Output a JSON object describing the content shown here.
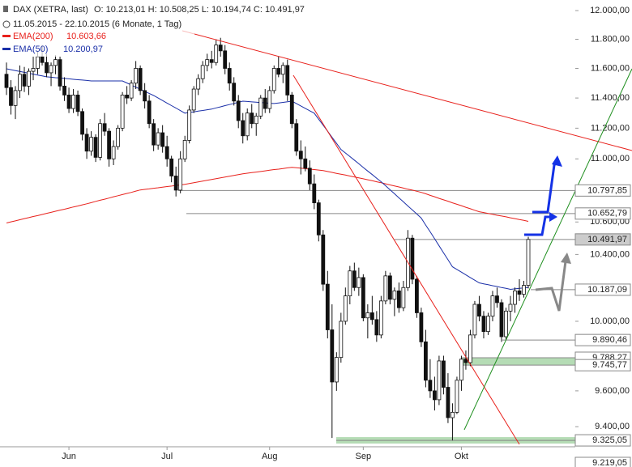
{
  "chart_data": {
    "type": "candlestick",
    "title": "DAX (XETRA, last)",
    "quote": "O: 10.213,01  H: 10.508,25  L: 10.194,74  C: 10.491,97",
    "period": "11.05.2015 - 22.10.2015 (6 Monate, 1 Tag)",
    "log_scale": true,
    "ylim": [
      9290,
      12075
    ],
    "yticks": [
      {
        "value": 12000,
        "label": "12.000,00"
      },
      {
        "value": 11800,
        "label": "11.800,00"
      },
      {
        "value": 11600,
        "label": "11.600,00"
      },
      {
        "value": 11400,
        "label": "11.400,00"
      },
      {
        "value": 11200,
        "label": "11.200,00"
      },
      {
        "value": 11000,
        "label": "11.000,00"
      },
      {
        "value": 10600,
        "label": "10.600,00"
      },
      {
        "value": 10400,
        "label": "10.400,00"
      },
      {
        "value": 10000,
        "label": "10.000,00"
      },
      {
        "value": 9600,
        "label": "9.600,00"
      },
      {
        "value": 9400,
        "label": "9.400,00"
      }
    ],
    "categories": [
      null,
      null,
      null,
      null,
      null,
      null,
      null,
      null,
      null,
      null,
      null,
      null,
      null,
      null,
      "Jun",
      null,
      null,
      null,
      null,
      null,
      null,
      null,
      null,
      null,
      null,
      null,
      null,
      null,
      null,
      null,
      null,
      null,
      null,
      null,
      null,
      null,
      "Jul",
      null,
      null,
      null,
      null,
      null,
      null,
      null,
      null,
      null,
      null,
      null,
      null,
      null,
      null,
      null,
      null,
      null,
      null,
      null,
      null,
      null,
      null,
      "Aug",
      null,
      null,
      null,
      null,
      null,
      null,
      null,
      null,
      null,
      null,
      null,
      null,
      null,
      null,
      null,
      null,
      null,
      null,
      null,
      null,
      "Sep",
      null,
      null,
      null,
      null,
      null,
      null,
      null,
      null,
      null,
      null,
      null,
      null,
      null,
      null,
      null,
      null,
      null,
      null,
      null,
      null,
      null,
      "Okt",
      null,
      null,
      null,
      null,
      null,
      null,
      null,
      null,
      null,
      null,
      null,
      null,
      null,
      null,
      null
    ],
    "candles": [
      [
        11560,
        11640,
        11420,
        11470
      ],
      [
        11470,
        11520,
        11290,
        11350
      ],
      [
        11350,
        11480,
        11260,
        11450
      ],
      [
        11450,
        11620,
        11400,
        11560
      ],
      [
        11560,
        11610,
        11440,
        11480
      ],
      [
        11480,
        11600,
        11420,
        11580
      ],
      [
        11580,
        11680,
        11520,
        11600
      ],
      [
        11600,
        11720,
        11560,
        11680
      ],
      [
        11680,
        11760,
        11620,
        11640
      ],
      [
        11640,
        11700,
        11540,
        11570
      ],
      [
        11570,
        11640,
        11480,
        11620
      ],
      [
        11620,
        11690,
        11560,
        11660
      ],
      [
        11660,
        11680,
        11450,
        11480
      ],
      [
        11480,
        11540,
        11380,
        11420
      ],
      [
        11420,
        11470,
        11300,
        11330
      ],
      [
        11330,
        11460,
        11300,
        11420
      ],
      [
        11420,
        11450,
        11280,
        11310
      ],
      [
        11310,
        11330,
        11120,
        11160
      ],
      [
        11160,
        11200,
        11000,
        11050
      ],
      [
        11050,
        11180,
        11020,
        11140
      ],
      [
        11140,
        11160,
        10980,
        11010
      ],
      [
        11010,
        11260,
        10990,
        11230
      ],
      [
        11230,
        11300,
        11150,
        11180
      ],
      [
        11180,
        11200,
        10950,
        11000
      ],
      [
        11000,
        11120,
        10960,
        11080
      ],
      [
        11080,
        11220,
        11060,
        11200
      ],
      [
        11200,
        11440,
        11180,
        11420
      ],
      [
        11420,
        11480,
        11360,
        11400
      ],
      [
        11400,
        11520,
        11380,
        11500
      ],
      [
        11500,
        11650,
        11460,
        11600
      ],
      [
        11600,
        11620,
        11420,
        11450
      ],
      [
        11450,
        11500,
        11330,
        11380
      ],
      [
        11380,
        11420,
        11200,
        11230
      ],
      [
        11230,
        11260,
        11050,
        11090
      ],
      [
        11090,
        11200,
        11060,
        11170
      ],
      [
        11170,
        11220,
        11040,
        11080
      ],
      [
        11080,
        11150,
        10950,
        11000
      ],
      [
        11000,
        11020,
        10850,
        10890
      ],
      [
        10890,
        10950,
        10760,
        10800
      ],
      [
        10800,
        11050,
        10780,
        11000
      ],
      [
        11000,
        11150,
        10980,
        11120
      ],
      [
        11120,
        11350,
        11100,
        11320
      ],
      [
        11320,
        11480,
        11300,
        11460
      ],
      [
        11460,
        11560,
        11420,
        11530
      ],
      [
        11530,
        11650,
        11500,
        11620
      ],
      [
        11620,
        11700,
        11580,
        11660
      ],
      [
        11660,
        11720,
        11600,
        11640
      ],
      [
        11640,
        11800,
        11620,
        11760
      ],
      [
        11760,
        11810,
        11680,
        11720
      ],
      [
        11720,
        11760,
        11560,
        11600
      ],
      [
        11600,
        11640,
        11450,
        11500
      ],
      [
        11500,
        11540,
        11350,
        11380
      ],
      [
        11380,
        11420,
        11200,
        11250
      ],
      [
        11250,
        11300,
        11100,
        11150
      ],
      [
        11150,
        11330,
        11120,
        11300
      ],
      [
        11300,
        11360,
        11200,
        11230
      ],
      [
        11230,
        11300,
        11150,
        11280
      ],
      [
        11280,
        11420,
        11260,
        11400
      ],
      [
        11400,
        11460,
        11300,
        11330
      ],
      [
        11330,
        11480,
        11300,
        11450
      ],
      [
        11450,
        11620,
        11430,
        11600
      ],
      [
        11600,
        11680,
        11540,
        11560
      ],
      [
        11560,
        11640,
        11500,
        11620
      ],
      [
        11620,
        11660,
        11380,
        11420
      ],
      [
        11420,
        11440,
        11200,
        11230
      ],
      [
        11230,
        11260,
        11020,
        11050
      ],
      [
        11050,
        11120,
        10900,
        11000
      ],
      [
        11000,
        11080,
        10920,
        10940
      ],
      [
        10940,
        10990,
        10800,
        10840
      ],
      [
        10840,
        10900,
        10680,
        10720
      ],
      [
        10720,
        10740,
        10480,
        10520
      ],
      [
        10520,
        10550,
        10180,
        10220
      ],
      [
        10220,
        10300,
        9900,
        9950
      ],
      [
        9950,
        10100,
        9338,
        9650
      ],
      [
        9650,
        9820,
        9600,
        9790
      ],
      [
        9790,
        10050,
        9760,
        10000
      ],
      [
        10000,
        10200,
        9980,
        10150
      ],
      [
        10150,
        10330,
        10100,
        10300
      ],
      [
        10300,
        10350,
        10180,
        10200
      ],
      [
        10200,
        10320,
        10150,
        10260
      ],
      [
        10260,
        10280,
        10000,
        10020
      ],
      [
        10020,
        10100,
        9900,
        10050
      ],
      [
        10050,
        10150,
        9980,
        10010
      ],
      [
        10010,
        10060,
        9880,
        9920
      ],
      [
        9920,
        10150,
        9900,
        10120
      ],
      [
        10120,
        10300,
        10100,
        10270
      ],
      [
        10270,
        10290,
        10100,
        10130
      ],
      [
        10130,
        10200,
        10030,
        10180
      ],
      [
        10180,
        10230,
        10050,
        10080
      ],
      [
        10080,
        10240,
        10060,
        10200
      ],
      [
        10200,
        10550,
        10180,
        10500
      ],
      [
        10500,
        10520,
        10220,
        10250
      ],
      [
        10250,
        10270,
        10020,
        10050
      ],
      [
        10050,
        10080,
        9850,
        9880
      ],
      [
        9880,
        9950,
        9620,
        9660
      ],
      [
        9660,
        9780,
        9560,
        9600
      ],
      [
        9600,
        9680,
        9490,
        9550
      ],
      [
        9550,
        9800,
        9520,
        9770
      ],
      [
        9770,
        9800,
        9580,
        9620
      ],
      [
        9620,
        9700,
        9420,
        9450
      ],
      [
        9450,
        9530,
        9325,
        9480
      ],
      [
        9480,
        9680,
        9470,
        9660
      ],
      [
        9660,
        9800,
        9600,
        9780
      ],
      [
        9780,
        9830,
        9720,
        9760
      ],
      [
        9760,
        9950,
        9740,
        9920
      ],
      [
        9920,
        10120,
        9900,
        10100
      ],
      [
        10100,
        10150,
        10000,
        10030
      ],
      [
        10030,
        10060,
        9900,
        9940
      ],
      [
        9940,
        10050,
        9920,
        10030
      ],
      [
        10030,
        10180,
        10000,
        10150
      ],
      [
        10150,
        10200,
        10080,
        10110
      ],
      [
        10110,
        10130,
        9880,
        9910
      ],
      [
        9910,
        10080,
        9890,
        10060
      ],
      [
        10060,
        10150,
        10000,
        10100
      ],
      [
        10100,
        10200,
        10050,
        10180
      ],
      [
        10180,
        10250,
        10120,
        10160
      ],
      [
        10160,
        10240,
        10140,
        10213
      ],
      [
        10213.01,
        10508.25,
        10194.74,
        10491.97
      ]
    ],
    "series": [
      {
        "name": "EMA(200)",
        "value_label": "10.603,66",
        "color": "#e8211c",
        "values": [
          10594,
          10601,
          10607,
          10614,
          10621,
          10627,
          10634,
          10640,
          10647,
          10654,
          10660,
          10667,
          10674,
          10680,
          10687,
          10694,
          10700,
          10707,
          10714,
          10721,
          10729,
          10736,
          10743,
          10750,
          10758,
          10765,
          10772,
          10779,
          10786,
          10794,
          10801,
          10805,
          10808,
          10812,
          10815,
          10819,
          10823,
          10826,
          10830,
          10833,
          10837,
          10842,
          10847,
          10852,
          10858,
          10863,
          10868,
          10873,
          10878,
          10883,
          10889,
          10894,
          10899,
          10904,
          10908,
          10912,
          10915,
          10919,
          10923,
          10927,
          10931,
          10934,
          10938,
          10942,
          10946,
          10943,
          10940,
          10937,
          10934,
          10931,
          10928,
          10925,
          10919,
          10913,
          10907,
          10901,
          10896,
          10890,
          10884,
          10878,
          10872,
          10866,
          10860,
          10853,
          10847,
          10840,
          10833,
          10827,
          10820,
          10813,
          10806,
          10800,
          10793,
          10786,
          10777,
          10767,
          10758,
          10748,
          10739,
          10730,
          10720,
          10711,
          10702,
          10692,
          10683,
          10673,
          10664,
          10659,
          10653,
          10648,
          10642,
          10637,
          10632,
          10626,
          10621,
          10615,
          10610,
          10604
        ]
      },
      {
        "name": "EMA(50)",
        "value_label": "10.200,97",
        "color": "#1a2fa8",
        "values": [
          11597,
          11591,
          11585,
          11579,
          11573,
          11567,
          11561,
          11555,
          11549,
          11543,
          11540,
          11537,
          11535,
          11532,
          11529,
          11526,
          11523,
          11521,
          11518,
          11515,
          11515,
          11515,
          11515,
          11515,
          11515,
          11515,
          11515,
          11501,
          11487,
          11473,
          11459,
          11445,
          11431,
          11417,
          11400,
          11383,
          11366,
          11349,
          11333,
          11316,
          11299,
          11304,
          11308,
          11313,
          11317,
          11322,
          11326,
          11334,
          11341,
          11349,
          11356,
          11364,
          11372,
          11379,
          11377,
          11374,
          11372,
          11370,
          11368,
          11365,
          11363,
          11367,
          11371,
          11375,
          11379,
          11363,
          11347,
          11331,
          11315,
          11299,
          11259,
          11220,
          11180,
          11140,
          11101,
          11061,
          11038,
          11015,
          10992,
          10969,
          10945,
          10922,
          10899,
          10876,
          10853,
          10828,
          10802,
          10777,
          10751,
          10726,
          10700,
          10675,
          10650,
          10624,
          10581,
          10539,
          10496,
          10453,
          10410,
          10368,
          10325,
          10309,
          10293,
          10276,
          10260,
          10244,
          10228,
          10222,
          10217,
          10211,
          10206,
          10200,
          10195,
          10189,
          10192,
          10195,
          10198,
          10201
        ]
      }
    ],
    "levels": [
      {
        "value": 10797.85,
        "label": "10.797,85"
      },
      {
        "value": 10652.79,
        "label": "10.652,79"
      },
      {
        "value": 10491.97,
        "label": "10.491,97"
      },
      {
        "value": 10187.09,
        "label": "10.187,09"
      },
      {
        "value": 9890.46,
        "label": "9.890,46"
      },
      {
        "value": 9788.27,
        "label": "9.788,27"
      },
      {
        "value": 9745.77,
        "label": "9.745,77"
      },
      {
        "value": 9325.05,
        "label": "9.325,05"
      },
      {
        "value": 9219.05,
        "label": "9.219,05"
      }
    ]
  }
}
